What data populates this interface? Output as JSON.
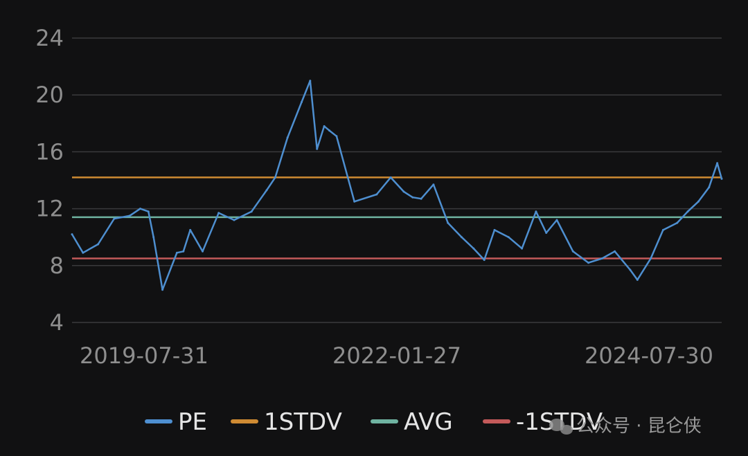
{
  "chart_data": {
    "type": "line",
    "title": "",
    "xlabel": "",
    "ylabel": "",
    "ylim": [
      4,
      24
    ],
    "y_ticks": [
      "24",
      "20",
      "16",
      "12",
      "8",
      "4"
    ],
    "y_tick_values": [
      24,
      20,
      16,
      12,
      8,
      4
    ],
    "x_tick_labels": [
      "2019-07-31",
      "2022-01-27",
      "2024-07-30"
    ],
    "xlim": [
      "2019-07-31",
      "2024-10-08"
    ],
    "grid": true,
    "legend_position": "bottom",
    "series": [
      {
        "name": "PE",
        "color": "#4e8fd0",
        "x": [
          "2019-07-31",
          "2019-09-01",
          "2019-10-15",
          "2019-12-01",
          "2020-01-15",
          "2020-02-15",
          "2020-03-10",
          "2020-03-25",
          "2020-04-20",
          "2020-06-01",
          "2020-06-20",
          "2020-07-10",
          "2020-08-15",
          "2020-10-01",
          "2020-11-15",
          "2021-01-05",
          "2021-02-18",
          "2021-03-15",
          "2021-04-20",
          "2021-05-31",
          "2021-06-25",
          "2021-07-15",
          "2021-08-05",
          "2021-08-20",
          "2021-09-10",
          "2021-11-01",
          "2022-01-05",
          "2022-02-15",
          "2022-03-25",
          "2022-04-20",
          "2022-05-15",
          "2022-06-20",
          "2022-08-01",
          "2022-09-10",
          "2022-10-15",
          "2022-11-15",
          "2022-12-15",
          "2023-01-25",
          "2023-03-05",
          "2023-04-15",
          "2023-05-15",
          "2023-06-15",
          "2023-08-01",
          "2023-09-15",
          "2023-10-25",
          "2023-12-01",
          "2024-01-15",
          "2024-02-05",
          "2024-03-15",
          "2024-04-20",
          "2024-05-31",
          "2024-07-01",
          "2024-08-01",
          "2024-09-01",
          "2024-09-25",
          "2024-10-08"
        ],
        "values": [
          10.2,
          8.9,
          9.5,
          11.3,
          11.5,
          12.0,
          11.8,
          10.0,
          6.3,
          8.9,
          9.0,
          10.5,
          9.0,
          11.7,
          11.2,
          11.8,
          13.3,
          14.2,
          17.0,
          19.5,
          21.0,
          16.2,
          17.8,
          17.5,
          17.1,
          12.5,
          13.0,
          14.2,
          13.2,
          12.8,
          12.7,
          13.7,
          11.0,
          10.0,
          9.2,
          8.4,
          10.5,
          10.0,
          9.2,
          11.8,
          10.3,
          11.2,
          9.0,
          8.2,
          8.5,
          9.0,
          7.7,
          7.0,
          8.5,
          10.5,
          11.0,
          11.8,
          12.5,
          13.5,
          15.2,
          14.1
        ]
      },
      {
        "name": "1STDV",
        "color": "#cf8b33",
        "values": [
          14.2
        ]
      },
      {
        "name": "AVG",
        "color": "#6fb3a1",
        "values": [
          11.4
        ]
      },
      {
        "name": "-1STDV",
        "color": "#c45a5a",
        "values": [
          8.5
        ]
      }
    ]
  },
  "legend": [
    {
      "label": "PE",
      "color": "#4e8fd0"
    },
    {
      "label": "1STDV",
      "color": "#cf8b33"
    },
    {
      "label": "AVG",
      "color": "#6fb3a1"
    },
    {
      "label": "-1STDV",
      "color": "#c45a5a"
    }
  ],
  "watermark": {
    "text": "公众号 · 昆仑侠",
    "icon": "wechat-icon"
  }
}
